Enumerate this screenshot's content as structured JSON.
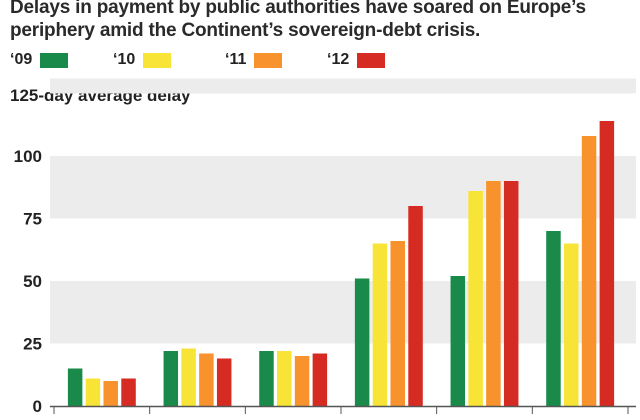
{
  "header": {
    "subtitle": "Delays in payment by public authorities have soared on Europe’s periphery amid the Continent’s sovereign-debt crisis."
  },
  "chart_data": {
    "type": "bar",
    "title": "",
    "subtitle": "Delays in payment by public authorities have soared on Europe’s periphery amid the Continent’s sovereign-debt crisis.",
    "xlabel": "",
    "ylabel": "125-day average delay",
    "ylim": [
      0,
      125
    ],
    "yticks": [
      0,
      25,
      50,
      75,
      100
    ],
    "ytick_labels": [
      "0",
      "25",
      "50",
      "75",
      "100"
    ],
    "grid": "horizontal bands",
    "legend_position": "top-left",
    "categories": [
      "",
      "",
      "",
      "",
      "",
      ""
    ],
    "series": [
      {
        "name": "‘09",
        "color": "#1a8a4a",
        "values": [
          15,
          22,
          22,
          51,
          52,
          70
        ]
      },
      {
        "name": "‘10",
        "color": "#f7e436",
        "values": [
          11,
          23,
          22,
          65,
          86,
          65
        ]
      },
      {
        "name": "‘11",
        "color": "#f7922d",
        "values": [
          10,
          21,
          20,
          66,
          90,
          108
        ]
      },
      {
        "name": "‘12",
        "color": "#d52b22",
        "values": [
          11,
          19,
          21,
          80,
          90,
          114
        ]
      }
    ],
    "colors": {
      "band": "#ececec",
      "axis": "#555555"
    }
  }
}
